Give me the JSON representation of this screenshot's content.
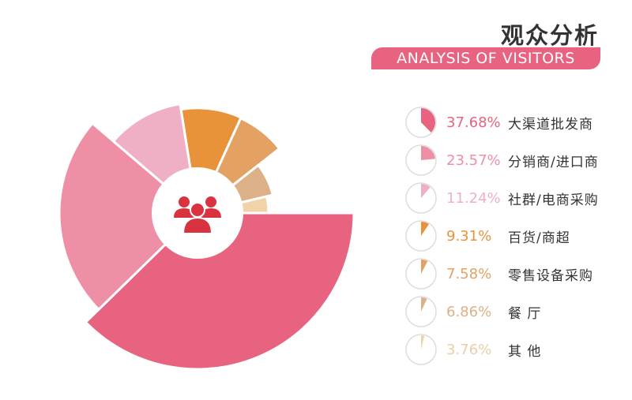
{
  "header": {
    "title_cn": "观众分析",
    "title_en": "ANALYSIS OF VISITORS"
  },
  "center_icon": "users-icon",
  "chart_data": {
    "type": "pie",
    "categories": [
      "大渠道批发商",
      "分销商/进口商",
      "社群/电商采购",
      "百货/商超",
      "零售设备采购",
      "餐 厅",
      "其 他"
    ],
    "values": [
      37.68,
      23.57,
      11.24,
      9.31,
      7.58,
      6.86,
      3.76
    ],
    "labels": [
      "37.68%",
      "23.57%",
      "11.24%",
      "9.31%",
      "7.58%",
      "6.86%",
      "3.76%"
    ],
    "colors": [
      "#e8637f",
      "#ee8fa6",
      "#efb0c6",
      "#e8923a",
      "#e4a164",
      "#dcb187",
      "#f2d2a8"
    ],
    "label_colors": [
      "#e8637f",
      "#ee8fa6",
      "#efb0c6",
      "#e8923a",
      "#e4a164",
      "#dcb187",
      "#e8cfa8"
    ],
    "style": "variable-radius rose pie; larger share drawn with longer radius, clockwise from 3 o'clock"
  }
}
